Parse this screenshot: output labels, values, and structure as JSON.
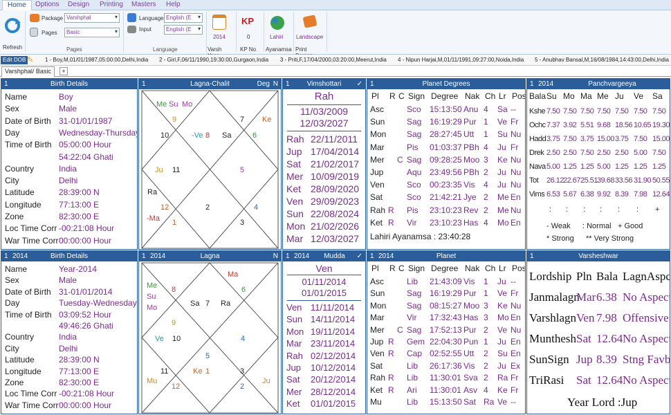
{
  "menu": {
    "home": "Home",
    "options": "Options",
    "design": "Design",
    "printing": "Printing",
    "masters": "Masters",
    "help": "Help"
  },
  "ribbon": {
    "refresh": "Refresh",
    "package_label": "Package",
    "package_value": "Varshphal",
    "pages_label": "Pages",
    "pages_value": "Basic",
    "pages_group": "Pages",
    "language_label": "Language",
    "language_value": "English (E",
    "input_label": "Input",
    "input_value": "English (E",
    "language_group": "Language",
    "varsh_year_value": "2014",
    "varsh_year": "Varsh Year",
    "kp_value": "0",
    "kp_no": "KP No",
    "ayanamsa_value": "Lahiri",
    "ayanamsa": "Ayanamsa",
    "landscape": "Landscape",
    "print_screen": "Print Screen",
    "kp_icon": "KP"
  },
  "dob": {
    "edit_label": "Edit DOB",
    "items": [
      "1 - Boy,M,01/01/1987,05:00:00,Delhi,India",
      "2 - Girl,F,06/11/1990,19:30:00,Gurgaon,India",
      "3 - Priti,F,17/04/2000,03:20:00,Meerut,India",
      "4 - Nipun Harjai,M,01/11/1991,09:27:00,Noida,India",
      "5 - Anubhav Bansal,M,16/08/1984,14:43:00,Delhi,India"
    ]
  },
  "tab": {
    "label": "Varshphal/ Basic",
    "plus": "+"
  },
  "birth1": {
    "num": "1",
    "title": "Birth Details",
    "rows": [
      [
        "Name",
        "Boy"
      ],
      [
        "Sex",
        "Male"
      ],
      [
        "Date of Birth",
        "31-01/01/1987"
      ],
      [
        "Day",
        "Wednesday-Thursday"
      ],
      [
        "Time of Birth",
        "05:00:00 Hour"
      ],
      [
        "",
        "54:22:04 Ghati"
      ],
      [
        "Country",
        "India"
      ],
      [
        "City",
        "Delhi"
      ],
      [
        "Latitude",
        "28:39:00 N"
      ],
      [
        "Longitude",
        "77:13:00 E"
      ],
      [
        "Zone",
        "82:30:00 E"
      ],
      [
        "Loc Time Corr",
        "-00:21:08 Hour"
      ],
      [
        "War Time Corr",
        "00:00:00 Hour"
      ]
    ]
  },
  "birth2": {
    "num": "1",
    "year": "2014",
    "title": "Birth Details",
    "rows": [
      [
        "Name",
        "Year-2014"
      ],
      [
        "Sex",
        "Male"
      ],
      [
        "Date of Birth",
        "31-01/01/2014"
      ],
      [
        "Day",
        "Tuesday-Wednesday"
      ],
      [
        "Time of Birth",
        "03:09:52 Hour"
      ],
      [
        "",
        "49:46:26 Ghati"
      ],
      [
        "Country",
        "India"
      ],
      [
        "City",
        "Delhi"
      ],
      [
        "Latitude",
        "28:39:00 N"
      ],
      [
        "Longitude",
        "77:13:00 E"
      ],
      [
        "Zone",
        "82:30:00 E"
      ],
      [
        "Loc Time Corr",
        "-00:21:08 Hour"
      ],
      [
        "War Time Corr",
        "00:00:00 Hour"
      ]
    ]
  },
  "chart1": {
    "num": "1",
    "title": "Lagna-Chalit",
    "deg": "Deg",
    "n": "N",
    "texts": {
      "me": "Me",
      "su": "Su",
      "mo": "Mo",
      "n9": "9",
      "n10": "10",
      "ve": "-Ve",
      "n8": "8",
      "sa": "Sa",
      "n7": "7",
      "ke": "Ke",
      "n6": "6",
      "ju": "Ju",
      "n11": "11",
      "n5": "5",
      "ra": "Ra",
      "n12": "12",
      "ma": "-Ma",
      "n1": "1",
      "n2": "2",
      "n4": "4",
      "n3": "3"
    }
  },
  "chart2": {
    "num": "1",
    "year": "2014",
    "title": "Lagna",
    "n": "N",
    "texts": {
      "ma": "Ma",
      "me": "Me",
      "su": "Su",
      "mo": "Mo",
      "n8": "8",
      "sa": "Sa",
      "n7": "7",
      "ra": "Ra",
      "n6": "6",
      "ve": "Ve",
      "n10": "10",
      "n4": "4",
      "n9": "9",
      "n11": "11",
      "ke": "Ke",
      "n1": "1",
      "n12": "12",
      "n3": "3",
      "mu": "Mu",
      "n2": "2",
      "ju": "Ju",
      "n5": "5"
    }
  },
  "vim": {
    "num": "1",
    "title": "Vimshottari",
    "check": "✓",
    "head": "Rah",
    "d1": "11/03/2009",
    "d2": "12/03/2027",
    "rows": [
      [
        "Rah",
        "22/11/2011"
      ],
      [
        "Jup",
        "17/04/2014"
      ],
      [
        "Sat",
        "21/02/2017"
      ],
      [
        "Mer",
        "10/09/2019"
      ],
      [
        "Ket",
        "28/09/2020"
      ],
      [
        "Ven",
        "29/09/2023"
      ],
      [
        "Sun",
        "22/08/2024"
      ],
      [
        "Mon",
        "21/02/2026"
      ],
      [
        "Mar",
        "12/03/2027"
      ]
    ]
  },
  "mudda": {
    "num": "1",
    "year": "2014",
    "title": "Mudda",
    "check": "✓",
    "head": "Ven",
    "d1": "01/11/2014",
    "d2": "01/01/2015",
    "rows": [
      [
        "Ven",
        "11/11/2014"
      ],
      [
        "Sun",
        "14/11/2014"
      ],
      [
        "Mon",
        "19/11/2014"
      ],
      [
        "Mar",
        "23/11/2014"
      ],
      [
        "Rah",
        "02/12/2014"
      ],
      [
        "Jup",
        "10/12/2014"
      ],
      [
        "Sat",
        "20/12/2014"
      ],
      [
        "Mer",
        "28/12/2014"
      ],
      [
        "Ket",
        "01/01/2015"
      ]
    ]
  },
  "pdeg": {
    "num": "1",
    "title": "Planet Degrees",
    "cols": [
      "Pl",
      "R",
      "C",
      "Sign",
      "Degree",
      "Nak",
      "Ch",
      "Lr",
      "Pos"
    ],
    "rows": [
      [
        "Asc",
        "",
        "",
        "Sco",
        "15:13:50",
        "Anu",
        "4",
        "Sa",
        "--"
      ],
      [
        "Sun",
        "",
        "",
        "Sag",
        "16:19:29",
        "Pur",
        "1",
        "Ve",
        "Fr"
      ],
      [
        "Mon",
        "",
        "",
        "Sag",
        "28:27:45",
        "Utt",
        "1",
        "Su",
        "Nu"
      ],
      [
        "Mar",
        "",
        "",
        "Pis",
        "01:03:37",
        "PBh",
        "4",
        "Ju",
        "Fr"
      ],
      [
        "Mer",
        "",
        "C",
        "Sag",
        "09:28:25",
        "Moo",
        "3",
        "Ke",
        "Nu"
      ],
      [
        "Jup",
        "",
        "",
        "Aqu",
        "23:49:56",
        "PBh",
        "2",
        "Ju",
        "Nu"
      ],
      [
        "Ven",
        "",
        "",
        "Sco",
        "00:23:35",
        "Vis",
        "4",
        "Ju",
        "Nu"
      ],
      [
        "Sat",
        "",
        "",
        "Sco",
        "21:42:21",
        "Jye",
        "2",
        "Me",
        "En"
      ],
      [
        "Rah",
        "R",
        "",
        "Pis",
        "23:10:23",
        "Rev",
        "2",
        "Me",
        "Nu"
      ],
      [
        "Ket",
        "R",
        "",
        "Vir",
        "23:10:23",
        "Has",
        "4",
        "Mo",
        "En"
      ]
    ],
    "footer": "Lahiri Ayanamsa : 23:40:28"
  },
  "planet": {
    "num": "1",
    "year": "2014",
    "title": "Planet",
    "cols": [
      "Pl",
      "R",
      "C",
      "Sign",
      "Degree",
      "Nak",
      "Ch",
      "Lr",
      "Pos"
    ],
    "rows": [
      [
        "Asc",
        "",
        "",
        "Lib",
        "21:43:09",
        "Vis",
        "1",
        "Ju",
        "--"
      ],
      [
        "Sun",
        "",
        "",
        "Sag",
        "16:19:29",
        "Pur",
        "1",
        "Ve",
        "Fr"
      ],
      [
        "Mon",
        "",
        "",
        "Sag",
        "08:15:27",
        "Moo",
        "3",
        "Ke",
        "Nu"
      ],
      [
        "Mar",
        "",
        "",
        "Vir",
        "17:32:43",
        "Has",
        "3",
        "Mo",
        "En"
      ],
      [
        "Mer",
        "",
        "C",
        "Sag",
        "17:52:13",
        "Pur",
        "2",
        "Ve",
        "Nu"
      ],
      [
        "Jup",
        "R",
        "",
        "Gem",
        "22:04:30",
        "Pun",
        "1",
        "Ju",
        "En"
      ],
      [
        "Ven",
        "R",
        "",
        "Cap",
        "02:52:55",
        "Utt",
        "2",
        "Su",
        "En"
      ],
      [
        "Sat",
        "",
        "",
        "Lib",
        "26:17:36",
        "Vis",
        "2",
        "Ju",
        "Ex"
      ],
      [
        "Rah",
        "R",
        "",
        "Lib",
        "11:30:01",
        "Sva",
        "2",
        "Ra",
        "Fr"
      ],
      [
        "Ket",
        "R",
        "",
        "Ari",
        "11:30:01",
        "Asv",
        "4",
        "Ke",
        "Fr"
      ],
      [
        "Mu",
        "",
        "",
        "Lib",
        "15:13:50",
        "Sat",
        "Ra",
        "Ve",
        "--"
      ]
    ]
  },
  "panch": {
    "num": "1",
    "year": "2014",
    "title": "Panchvargeeya",
    "cols": [
      "Bala",
      "Su",
      "Mo",
      "Ma",
      "Me",
      "Ju",
      "Ve",
      "Sa"
    ],
    "rows": [
      [
        "Kshe",
        "7.50",
        "7.50",
        "7.50",
        "7.50",
        "7.50",
        "7.50",
        "7.50"
      ],
      [
        "Ochc",
        "7.37",
        "3.92",
        "5.51",
        "9.68",
        "18.56",
        "10.65",
        "19.30"
      ],
      [
        "Hadd",
        "3.75",
        "7.50",
        "3.75",
        "15.00",
        "3.75",
        "7.50",
        "15.00"
      ],
      [
        "Drek",
        "2.50",
        "2.50",
        "7.50",
        "2.50",
        "2.50",
        "5.00",
        "7.50"
      ],
      [
        "Nava",
        "5.00",
        "1.25",
        "1.25",
        "5.00",
        "1.25",
        "1.25",
        "1.25"
      ],
      [
        "Tot",
        "26.12",
        "22.67",
        "25.51",
        "39.68",
        "33.56",
        "31.90",
        "50.55"
      ],
      [
        "Vims",
        "6.53",
        "5.67",
        "6.38",
        "9.92",
        "8.39",
        "7.98",
        "12.64"
      ]
    ],
    "marks": [
      ":",
      ":",
      ":",
      ":",
      ":",
      ":",
      "+"
    ],
    "legend1a": "- Weak",
    "legend1b": ": Normal",
    "legend1c": "+ Good",
    "legend2a": "* Strong",
    "legend2b": "** Very Strong"
  },
  "varsh": {
    "num": "1",
    "title": "Varsheshwar",
    "head": [
      "Lordship",
      "Pln",
      "Bala",
      "LagnAspct"
    ],
    "rows": [
      [
        "Janmalagn",
        "Mar",
        "6.38",
        "No Aspect"
      ],
      [
        "Varshlagn",
        "Ven",
        "7.98",
        "Offensive"
      ],
      [
        "Munthesh",
        "Sat",
        "12.64",
        "No Aspect"
      ],
      [
        "SunSign",
        "Jup",
        "8.39",
        "Stng Favbl"
      ],
      [
        "TriRasi",
        "Sat",
        "12.64",
        "No Aspect"
      ]
    ],
    "year_lord": "Year Lord :Jup"
  }
}
